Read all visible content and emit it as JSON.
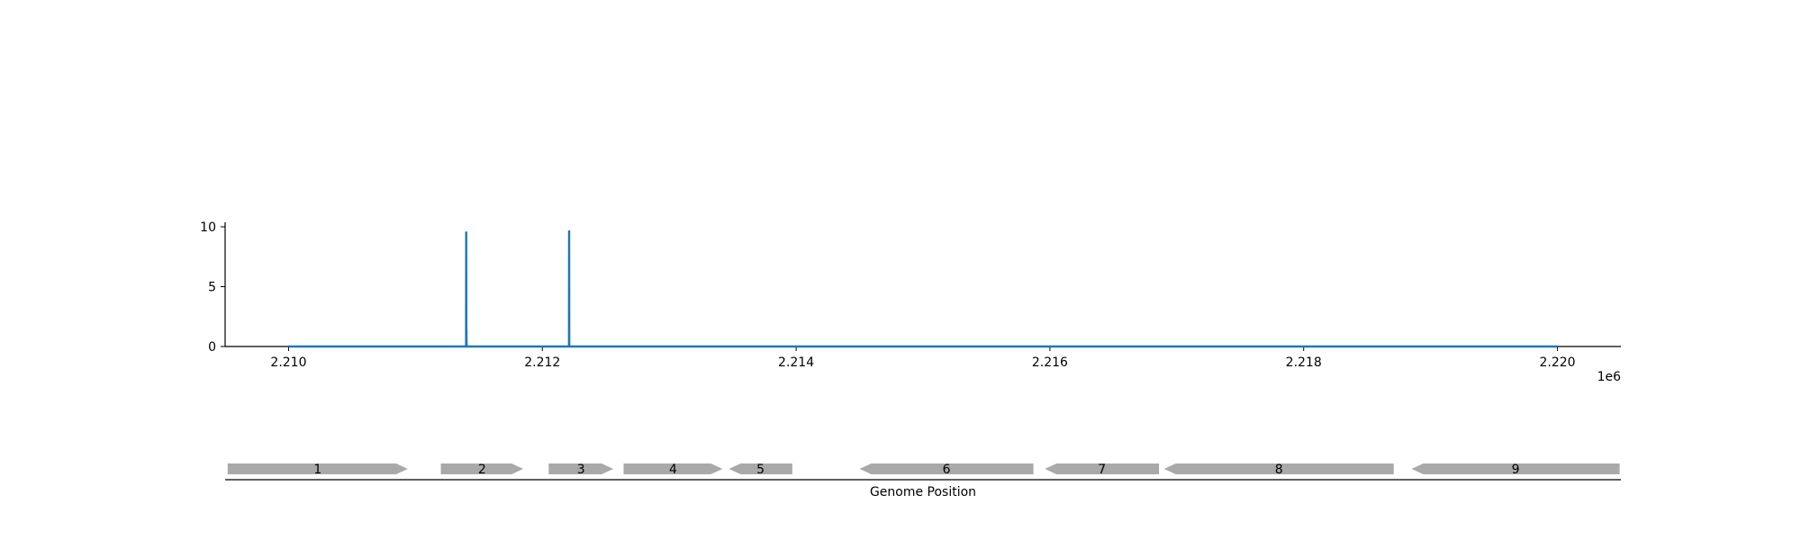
{
  "chart_data": [
    {
      "type": "line",
      "title": "",
      "xlabel": "",
      "ylabel": "",
      "x_offset_label": "1e6",
      "xlim": [
        2209500,
        2220500
      ],
      "ylim": [
        0,
        10.6
      ],
      "x_ticks": [
        2210000,
        2212000,
        2214000,
        2216000,
        2218000,
        2220000
      ],
      "x_tick_labels": [
        "2.210",
        "2.212",
        "2.214",
        "2.216",
        "2.218",
        "2.220"
      ],
      "y_ticks": [
        0,
        5,
        10
      ],
      "y_tick_labels": [
        "0",
        "5",
        "10"
      ],
      "grid": false,
      "legend": "none",
      "color": "#1f77b4",
      "series": [
        {
          "x": [
            2210000,
            2211399,
            2211400,
            2211401,
            2211402,
            2211403,
            2212210,
            2212211,
            2212212,
            2220000
          ],
          "y": [
            0,
            0,
            9.6,
            0,
            1.4,
            0,
            0,
            9.7,
            0,
            0
          ]
        }
      ]
    },
    {
      "type": "gene_track",
      "xlabel": "Genome Position",
      "xlim": [
        2209500,
        2220500
      ],
      "color": "#a9a9a9",
      "genes": [
        {
          "label": "1",
          "start": 2209520,
          "end": 2210940,
          "strand": "+"
        },
        {
          "label": "2",
          "start": 2211200,
          "end": 2211850,
          "strand": "+"
        },
        {
          "label": "3",
          "start": 2212050,
          "end": 2212560,
          "strand": "+"
        },
        {
          "label": "4",
          "start": 2212640,
          "end": 2213420,
          "strand": "+"
        },
        {
          "label": "5",
          "start": 2213470,
          "end": 2213970,
          "strand": "-"
        },
        {
          "label": "6",
          "start": 2214500,
          "end": 2215870,
          "strand": "-"
        },
        {
          "label": "7",
          "start": 2215960,
          "end": 2216860,
          "strand": "-"
        },
        {
          "label": "8",
          "start": 2216900,
          "end": 2218710,
          "strand": "-"
        },
        {
          "label": "9",
          "start": 2218850,
          "end": 2220490,
          "strand": "-"
        }
      ]
    }
  ]
}
